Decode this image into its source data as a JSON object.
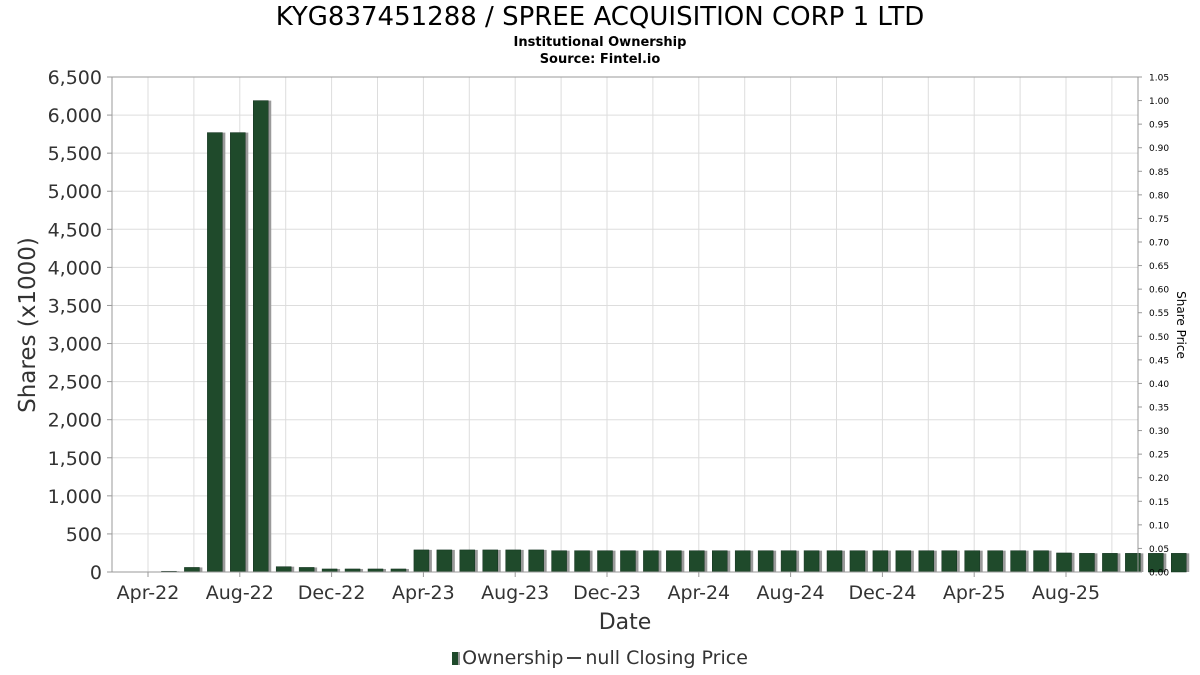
{
  "title": "KYG837451288 / SPREE ACQUISITION CORP 1 LTD",
  "subtitle1": "Institutional Ownership",
  "subtitle2": "Source: Fintel.io",
  "legend": {
    "ownership_label": "Ownership",
    "price_label": "null Closing Price"
  },
  "colors": {
    "bar": "#1f4a2b",
    "bar_shadow": "#9a9a9a",
    "grid": "#dddddd"
  },
  "chart_data": {
    "type": "bar",
    "xlabel": "Date",
    "ylabel": "Shares (x1000)",
    "y2label": "Share Price",
    "ylim": [
      0,
      6500
    ],
    "y2lim": [
      0,
      1.05
    ],
    "yticks": [
      0,
      500,
      1000,
      1500,
      2000,
      2500,
      3000,
      3500,
      4000,
      4500,
      5000,
      5500,
      6000,
      6500
    ],
    "ytick_labels": [
      "0",
      "500",
      "1,000",
      "1,500",
      "2,000",
      "2,500",
      "3,000",
      "3,500",
      "4,000",
      "4,500",
      "5,000",
      "5,500",
      "6,000",
      "6,500"
    ],
    "y2tick_labels": [
      "0.00",
      "0.05",
      "0.10",
      "0.15",
      "0.20",
      "0.25",
      "0.30",
      "0.35",
      "0.40",
      "0.45",
      "0.50",
      "0.55",
      "0.60",
      "0.65",
      "0.70",
      "0.75",
      "0.80",
      "0.85",
      "0.90",
      "0.95",
      "1.00",
      "1.05"
    ],
    "xtick_labels": [
      "Apr-22",
      "Aug-22",
      "Dec-22",
      "Apr-23",
      "Aug-23",
      "Dec-23",
      "Apr-24",
      "Aug-24",
      "Dec-24",
      "Apr-25",
      "Aug-25"
    ],
    "grid": true,
    "legend_position": "bottom",
    "series": [
      {
        "name": "Ownership",
        "values": [
          0,
          10,
          60,
          5770,
          5770,
          6190,
          70,
          60,
          40,
          40,
          40,
          40,
          290,
          290,
          290,
          290,
          290,
          290,
          280,
          280,
          280,
          280,
          280,
          280,
          280,
          280,
          280,
          280,
          280,
          280,
          280,
          280,
          280,
          280,
          280,
          280,
          280,
          280,
          280,
          280,
          250,
          245,
          245,
          245,
          245,
          245
        ]
      }
    ]
  }
}
